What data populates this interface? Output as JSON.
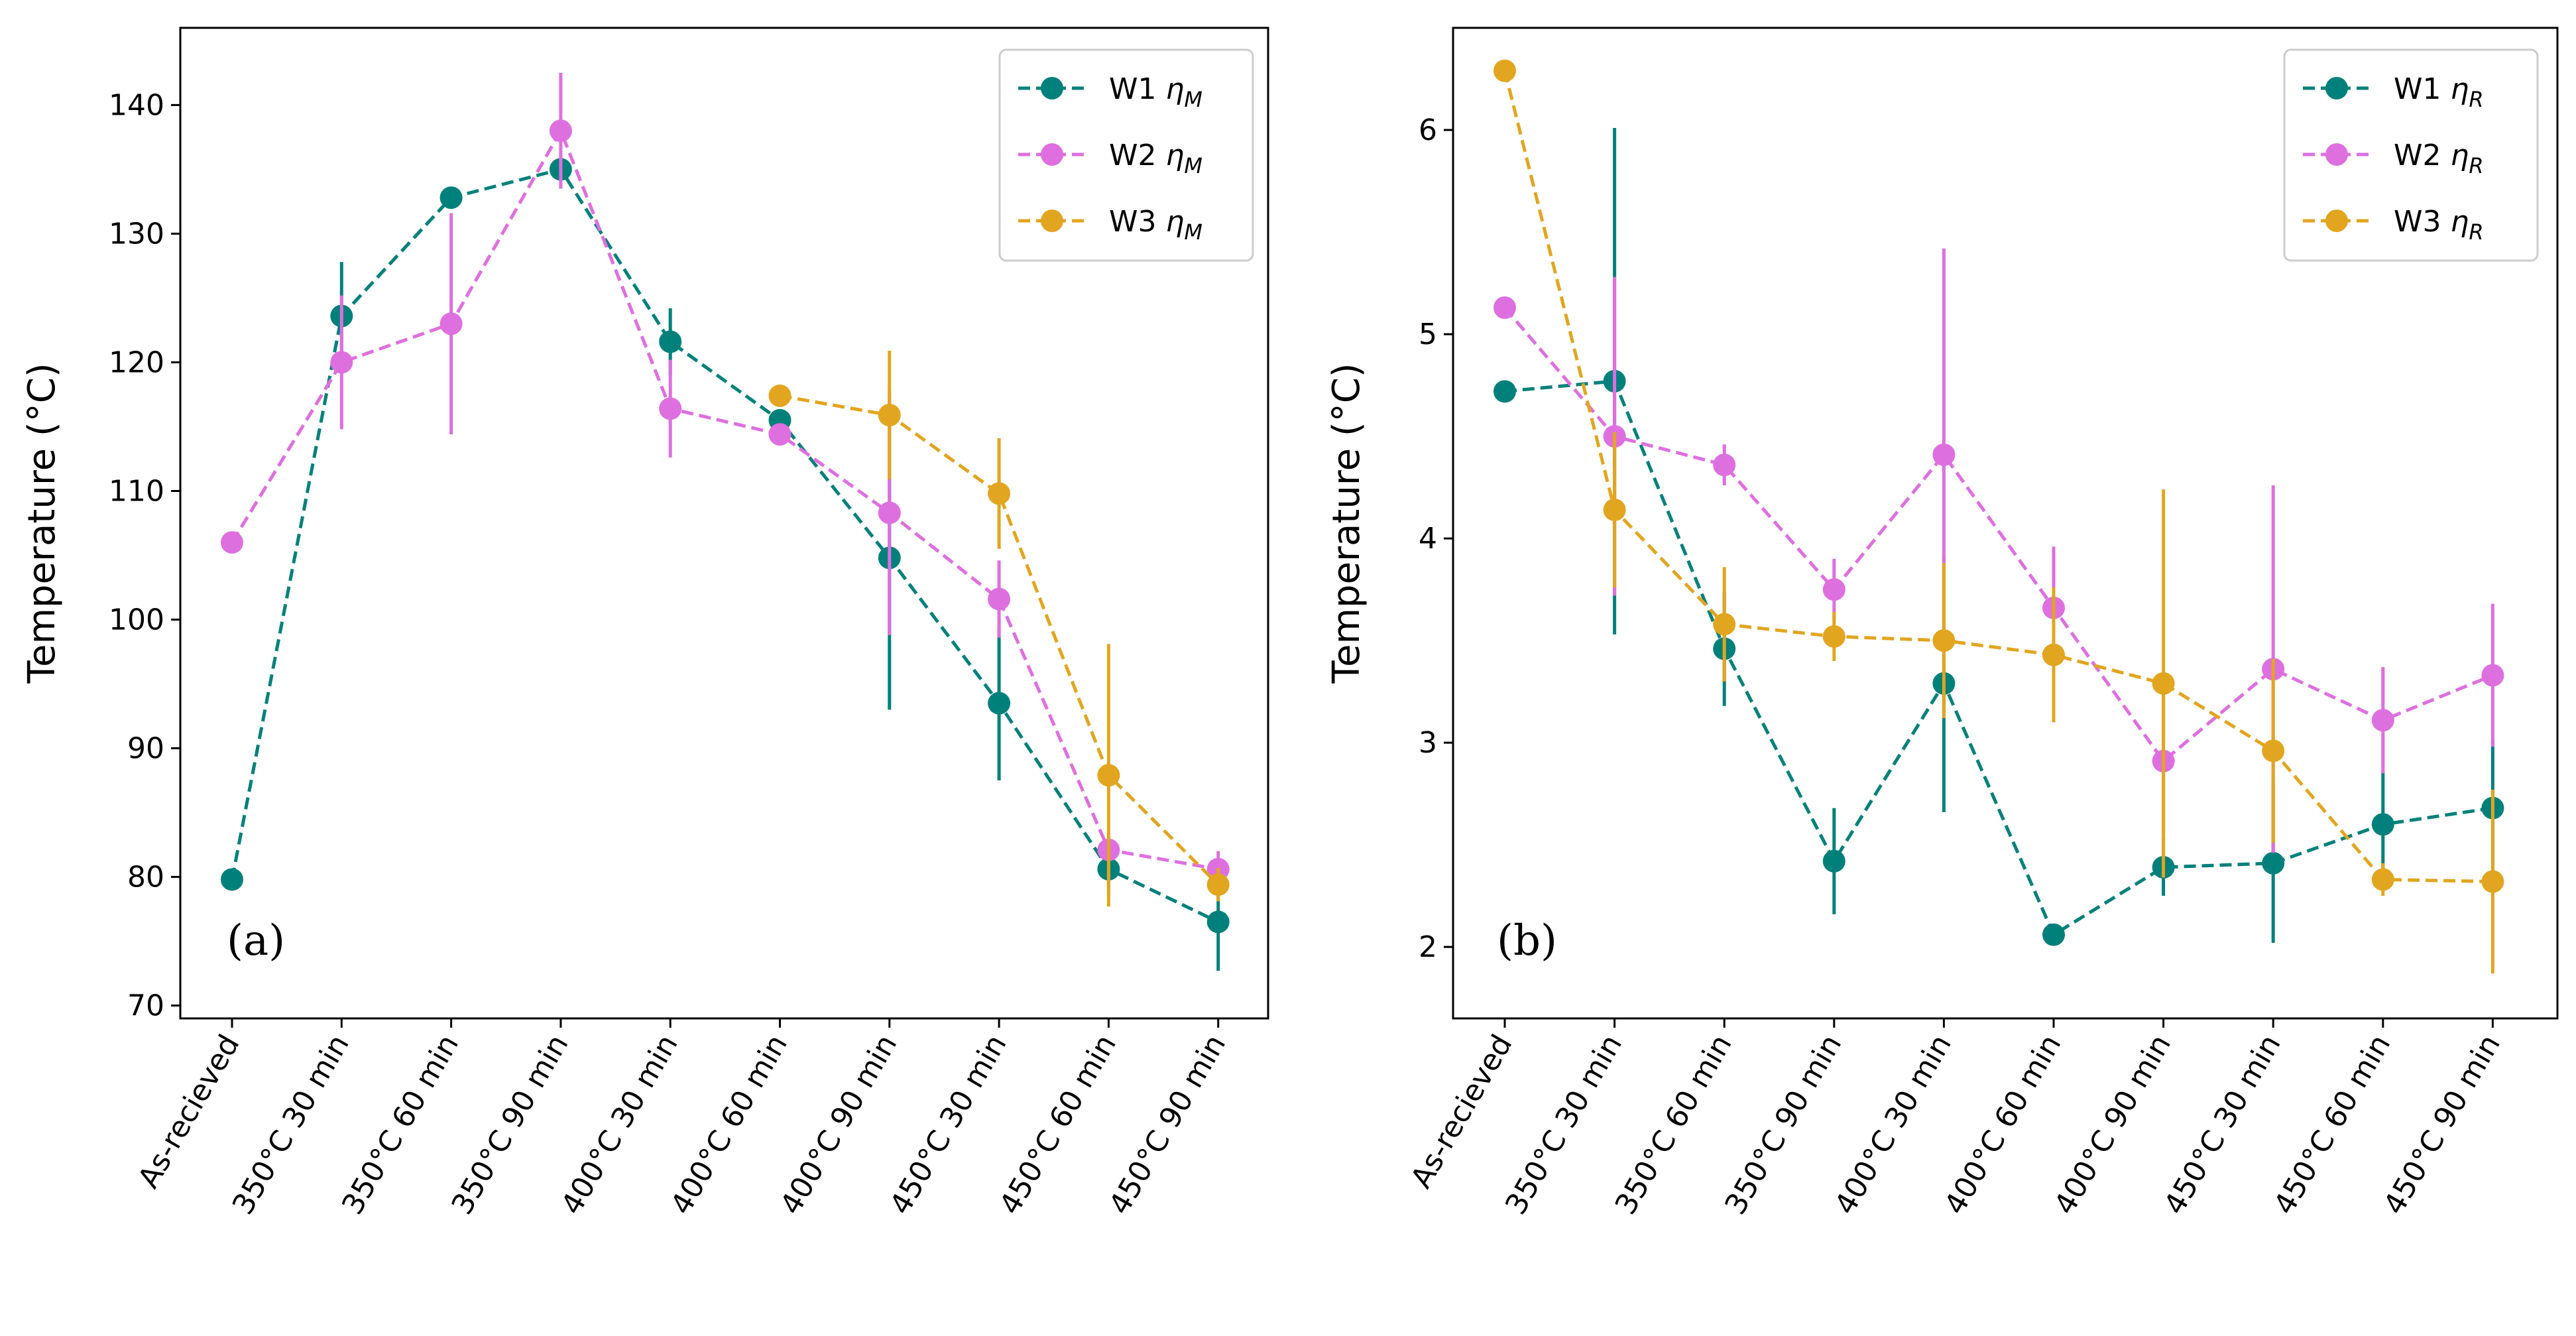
{
  "chart_data": [
    {
      "type": "line",
      "panel_label": "(a)",
      "ylabel": "Temperature (°C)",
      "ylim": [
        69,
        146
      ],
      "yticks": [
        70,
        80,
        90,
        100,
        110,
        120,
        130,
        140
      ],
      "categories": [
        "As-recieved",
        "350°C 30 min",
        "350°C 60 min",
        "350°C 90 min",
        "400°C 30 min",
        "400°C 60 min",
        "400°C 90 min",
        "450°C 30 min",
        "450°C 60 min",
        "450°C 90 min"
      ],
      "legend_location": "upper right",
      "series": [
        {
          "name": "W1",
          "symbol": "η",
          "subscript": "M",
          "color": "#00807a",
          "values": [
            79.8,
            123.6,
            132.8,
            135.0,
            121.6,
            115.5,
            104.8,
            93.5,
            80.6,
            76.5
          ],
          "errors": [
            0,
            4.2,
            0.5,
            0.6,
            2.6,
            0.8,
            11.8,
            6.0,
            1.5,
            3.8
          ]
        },
        {
          "name": "W2",
          "symbol": "η",
          "subscript": "M",
          "color": "#de6fdf",
          "values": [
            106.0,
            120.0,
            123.0,
            138.0,
            116.4,
            114.4,
            108.3,
            101.6,
            82.1,
            80.6
          ],
          "errors": [
            0,
            5.2,
            8.6,
            4.5,
            3.8,
            0.5,
            9.5,
            3.0,
            0.6,
            1.4
          ]
        },
        {
          "name": "W3",
          "symbol": "η",
          "subscript": "M",
          "color": "#e2a51f",
          "values": [
            null,
            null,
            null,
            null,
            null,
            117.4,
            115.9,
            109.8,
            87.9,
            79.4
          ],
          "errors": [
            null,
            null,
            null,
            null,
            null,
            0,
            5.0,
            4.3,
            10.2,
            1.3
          ]
        }
      ]
    },
    {
      "type": "line",
      "panel_label": "(b)",
      "ylabel": "Temperature (°C)",
      "ylim": [
        1.65,
        6.5
      ],
      "yticks": [
        2,
        3,
        4,
        5,
        6
      ],
      "categories": [
        "As-recieved",
        "350°C 30 min",
        "350°C 60 min",
        "350°C 90 min",
        "400°C 30 min",
        "400°C 60 min",
        "400°C 90 min",
        "450°C 30 min",
        "450°C 60 min",
        "450°C 90 min"
      ],
      "legend_location": "upper right",
      "series": [
        {
          "name": "W1",
          "symbol": "η",
          "subscript": "R",
          "color": "#00807a",
          "values": [
            4.72,
            4.77,
            3.46,
            2.42,
            3.29,
            2.06,
            2.39,
            2.41,
            2.6,
            2.68
          ],
          "errors": [
            0,
            1.24,
            0.28,
            0.26,
            0.63,
            0.03,
            0.14,
            0.39,
            0.26,
            0.33
          ]
        },
        {
          "name": "W2",
          "symbol": "η",
          "subscript": "R",
          "color": "#de6fdf",
          "values": [
            5.13,
            4.5,
            4.36,
            3.75,
            4.41,
            3.66,
            2.91,
            3.36,
            3.11,
            3.33
          ],
          "errors": [
            0,
            0.78,
            0.1,
            0.15,
            1.01,
            0.3,
            0.35,
            0.9,
            0.26,
            0.35
          ]
        },
        {
          "name": "W3",
          "symbol": "η",
          "subscript": "R",
          "color": "#e2a51f",
          "values": [
            6.29,
            4.14,
            3.58,
            3.52,
            3.5,
            3.43,
            3.29,
            2.96,
            2.33,
            2.32
          ],
          "errors": [
            0,
            0.38,
            0.28,
            0.12,
            0.38,
            0.33,
            0.95,
            0.45,
            0.08,
            0.45
          ]
        }
      ]
    }
  ]
}
